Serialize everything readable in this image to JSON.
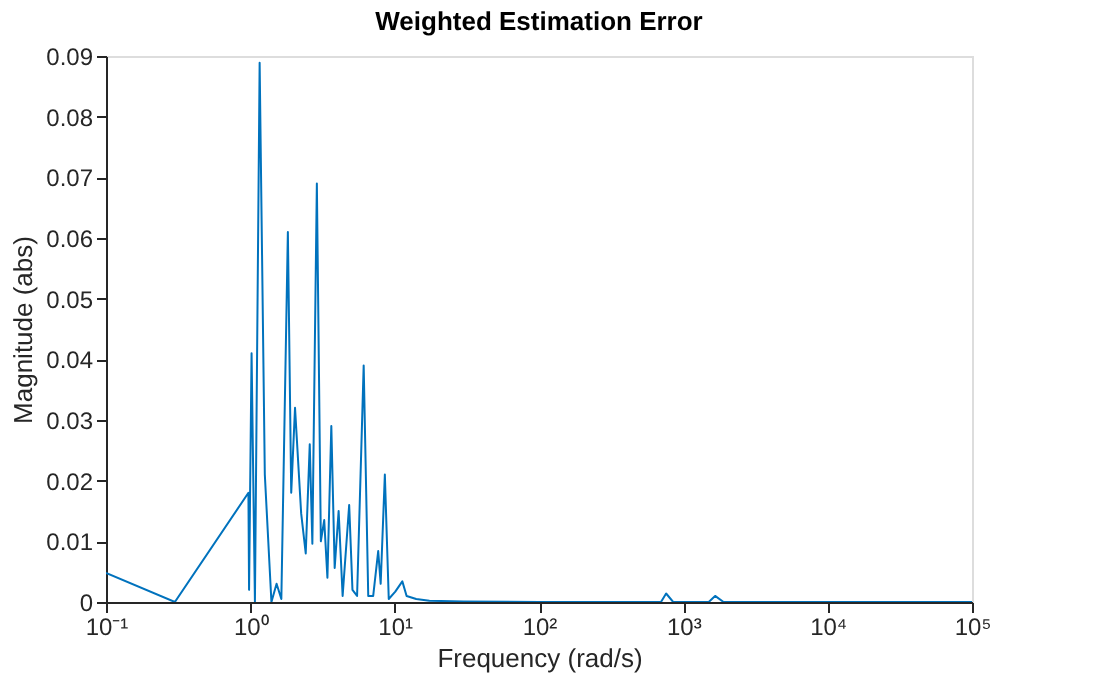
{
  "chart_data": {
    "type": "line",
    "title": "Weighted Estimation Error",
    "xlabel": "Frequency (rad/s)",
    "ylabel": "Magnitude (abs)",
    "log": "x",
    "grid": false,
    "line_style": "solid",
    "xlim": [
      0.1,
      100000
    ],
    "ylim": [
      0,
      0.09
    ],
    "xticks": [
      {
        "value": 0.1,
        "label": "10⁻¹"
      },
      {
        "value": 1,
        "label": "10⁰"
      },
      {
        "value": 10,
        "label": "10¹"
      },
      {
        "value": 100,
        "label": "10²"
      },
      {
        "value": 1000,
        "label": "10³"
      },
      {
        "value": 10000,
        "label": "10⁴"
      },
      {
        "value": 100000,
        "label": "10⁵"
      }
    ],
    "yticks": [
      0,
      0.01,
      0.02,
      0.03,
      0.04,
      0.05,
      0.06,
      0.07,
      0.08,
      0.09
    ],
    "series": [
      {
        "color": "#0072bd",
        "x": [
          0.1,
          0.3,
          0.97,
          0.98,
          1.02,
          1.076,
          1.16,
          1.26,
          1.4,
          1.52,
          1.64,
          1.82,
          1.92,
          2.04,
          2.25,
          2.42,
          2.58,
          2.69,
          2.89,
          3.08,
          3.25,
          3.42,
          3.64,
          3.84,
          4.09,
          4.36,
          4.84,
          5.1,
          5.49,
          6.1,
          6.56,
          7.1,
          7.69,
          8.0,
          8.55,
          9.1,
          10.1,
          11.3,
          12.1,
          14.1,
          17.4,
          30,
          100,
          700,
          760,
          850,
          1500,
          1660,
          1900,
          100000
        ],
        "values": [
          0.0048,
          0,
          0.018,
          0.002,
          0.041,
          0,
          0.0889,
          0.021,
          0,
          0.003,
          0.0005,
          0.061,
          0.018,
          0.032,
          0.0146,
          0.008,
          0.026,
          0.0096,
          0.069,
          0.01,
          0.0135,
          0.004,
          0.029,
          0.0056,
          0.015,
          0.001,
          0.016,
          0.002,
          0.001,
          0.039,
          0.001,
          0.001,
          0.0084,
          0.003,
          0.021,
          0.0005,
          0.0017,
          0.0034,
          0.001,
          0.0005,
          0.0002,
          0.0001,
          0,
          0,
          0.0014,
          0,
          0,
          0.001,
          0,
          0
        ]
      }
    ]
  }
}
